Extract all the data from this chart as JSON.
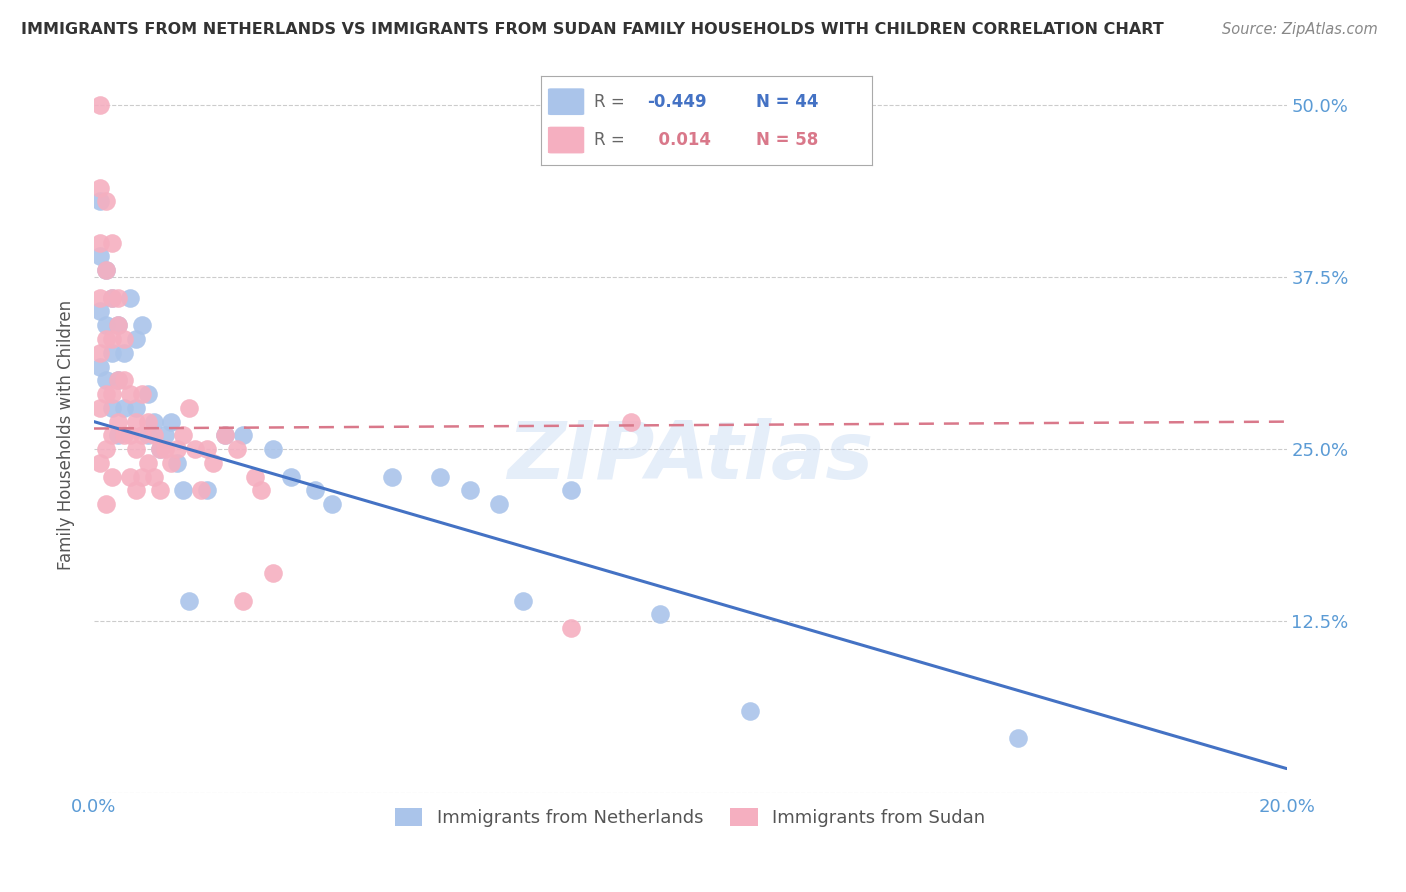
{
  "title": "IMMIGRANTS FROM NETHERLANDS VS IMMIGRANTS FROM SUDAN FAMILY HOUSEHOLDS WITH CHILDREN CORRELATION CHART",
  "source": "Source: ZipAtlas.com",
  "ylabel": "Family Households with Children",
  "xlim": [
    0.0,
    0.2
  ],
  "ylim": [
    0.0,
    0.52
  ],
  "yticks": [
    0.0,
    0.125,
    0.25,
    0.375,
    0.5
  ],
  "ytick_labels": [
    "",
    "12.5%",
    "25.0%",
    "37.5%",
    "50.0%"
  ],
  "xticks": [
    0.0,
    0.05,
    0.1,
    0.15,
    0.2
  ],
  "xtick_labels": [
    "0.0%",
    "",
    "",
    "",
    "20.0%"
  ],
  "netherlands_color": "#aac4ea",
  "sudan_color": "#f5afc0",
  "netherlands_R": -0.449,
  "netherlands_N": 44,
  "sudan_R": 0.014,
  "sudan_N": 58,
  "netherlands_line_color": "#4472c4",
  "sudan_line_color": "#d9788a",
  "background_color": "#ffffff",
  "grid_color": "#cccccc",
  "title_color": "#333333",
  "axis_color": "#5b9bd5",
  "watermark": "ZIPAtlas",
  "netherlands_line_x0": 0.0,
  "netherlands_line_y0": 0.27,
  "netherlands_line_x1": 0.2,
  "netherlands_line_y1": 0.018,
  "sudan_line_x0": 0.0,
  "sudan_line_y0": 0.265,
  "sudan_line_x1": 0.2,
  "sudan_line_y1": 0.27,
  "netherlands_x": [
    0.001,
    0.001,
    0.001,
    0.001,
    0.002,
    0.002,
    0.002,
    0.003,
    0.003,
    0.003,
    0.004,
    0.004,
    0.004,
    0.005,
    0.005,
    0.006,
    0.007,
    0.007,
    0.008,
    0.009,
    0.009,
    0.01,
    0.011,
    0.012,
    0.013,
    0.014,
    0.015,
    0.016,
    0.019,
    0.022,
    0.025,
    0.03,
    0.033,
    0.037,
    0.04,
    0.05,
    0.058,
    0.063,
    0.068,
    0.072,
    0.08,
    0.095,
    0.11,
    0.155
  ],
  "netherlands_y": [
    0.43,
    0.39,
    0.35,
    0.31,
    0.38,
    0.34,
    0.3,
    0.36,
    0.32,
    0.28,
    0.34,
    0.3,
    0.26,
    0.32,
    0.28,
    0.36,
    0.33,
    0.28,
    0.34,
    0.29,
    0.26,
    0.27,
    0.25,
    0.26,
    0.27,
    0.24,
    0.22,
    0.14,
    0.22,
    0.26,
    0.26,
    0.25,
    0.23,
    0.22,
    0.21,
    0.23,
    0.23,
    0.22,
    0.21,
    0.14,
    0.22,
    0.13,
    0.06,
    0.04
  ],
  "sudan_x": [
    0.001,
    0.001,
    0.001,
    0.001,
    0.001,
    0.001,
    0.001,
    0.002,
    0.002,
    0.002,
    0.002,
    0.002,
    0.002,
    0.003,
    0.003,
    0.003,
    0.003,
    0.003,
    0.003,
    0.004,
    0.004,
    0.004,
    0.004,
    0.005,
    0.005,
    0.005,
    0.006,
    0.006,
    0.006,
    0.007,
    0.007,
    0.007,
    0.008,
    0.008,
    0.008,
    0.009,
    0.009,
    0.01,
    0.01,
    0.011,
    0.011,
    0.012,
    0.013,
    0.014,
    0.015,
    0.016,
    0.017,
    0.018,
    0.019,
    0.02,
    0.022,
    0.024,
    0.025,
    0.027,
    0.028,
    0.03,
    0.08,
    0.09
  ],
  "sudan_y": [
    0.5,
    0.44,
    0.4,
    0.36,
    0.32,
    0.28,
    0.24,
    0.43,
    0.38,
    0.33,
    0.29,
    0.25,
    0.21,
    0.4,
    0.36,
    0.33,
    0.29,
    0.26,
    0.23,
    0.36,
    0.34,
    0.3,
    0.27,
    0.33,
    0.3,
    0.26,
    0.29,
    0.26,
    0.23,
    0.27,
    0.25,
    0.22,
    0.29,
    0.26,
    0.23,
    0.27,
    0.24,
    0.26,
    0.23,
    0.25,
    0.22,
    0.25,
    0.24,
    0.25,
    0.26,
    0.28,
    0.25,
    0.22,
    0.25,
    0.24,
    0.26,
    0.25,
    0.14,
    0.23,
    0.22,
    0.16,
    0.12,
    0.27
  ]
}
